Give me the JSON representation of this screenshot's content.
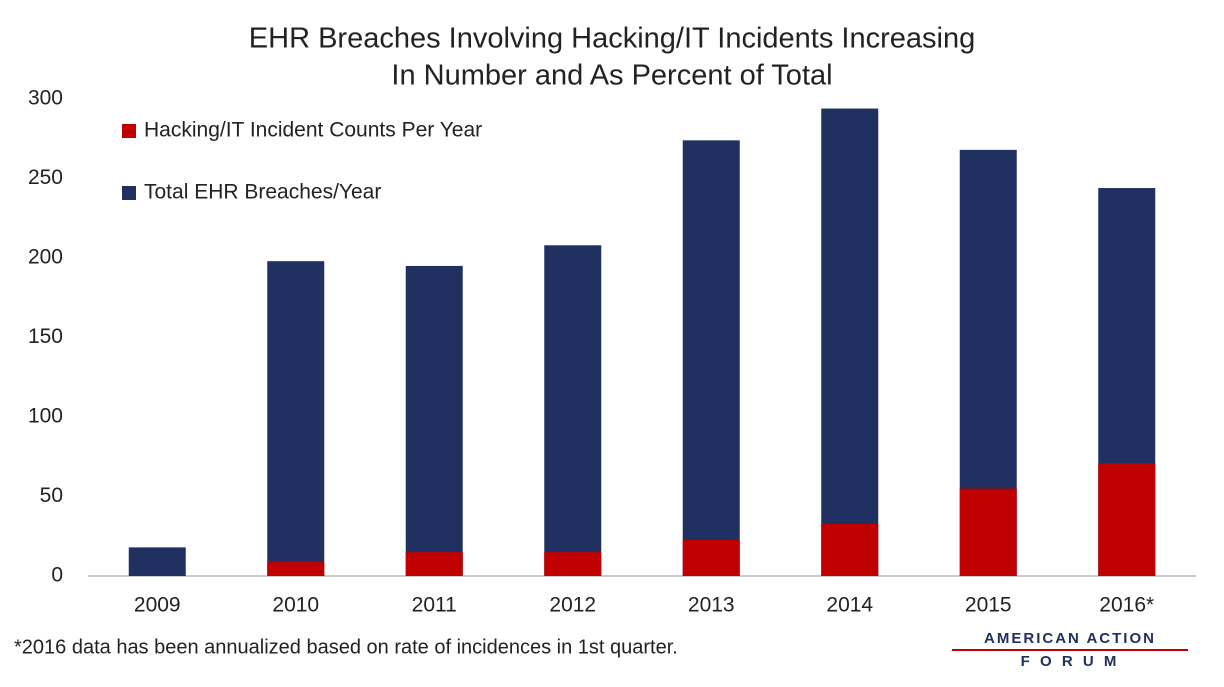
{
  "chart_data": {
    "type": "bar",
    "title": [
      "EHR Breaches Involving Hacking/IT Incidents Increasing",
      "In Number and As Percent of Total"
    ],
    "categories": [
      "2009",
      "2010",
      "2011",
      "2012",
      "2013",
      "2014",
      "2015",
      "2016*"
    ],
    "series": [
      {
        "name": "Hacking/IT Incident Counts Per Year",
        "color": "#c00000",
        "values": [
          0,
          9,
          15,
          15,
          23,
          33,
          55,
          71
        ]
      },
      {
        "name": "Total EHR Breaches/Year",
        "color": "#203060",
        "values": [
          18,
          198,
          195,
          208,
          274,
          294,
          268,
          244
        ]
      }
    ],
    "overlap": true,
    "ylim": [
      0,
      300
    ],
    "yticks": [
      0,
      50,
      100,
      150,
      200,
      250,
      300
    ],
    "grid": false,
    "legend": "top-left",
    "footnote": "*2016 data has been annualized based on rate of incidences in 1st quarter."
  },
  "logo": {
    "line1": "AMERICAN ACTION",
    "line2": "F O R U M"
  }
}
